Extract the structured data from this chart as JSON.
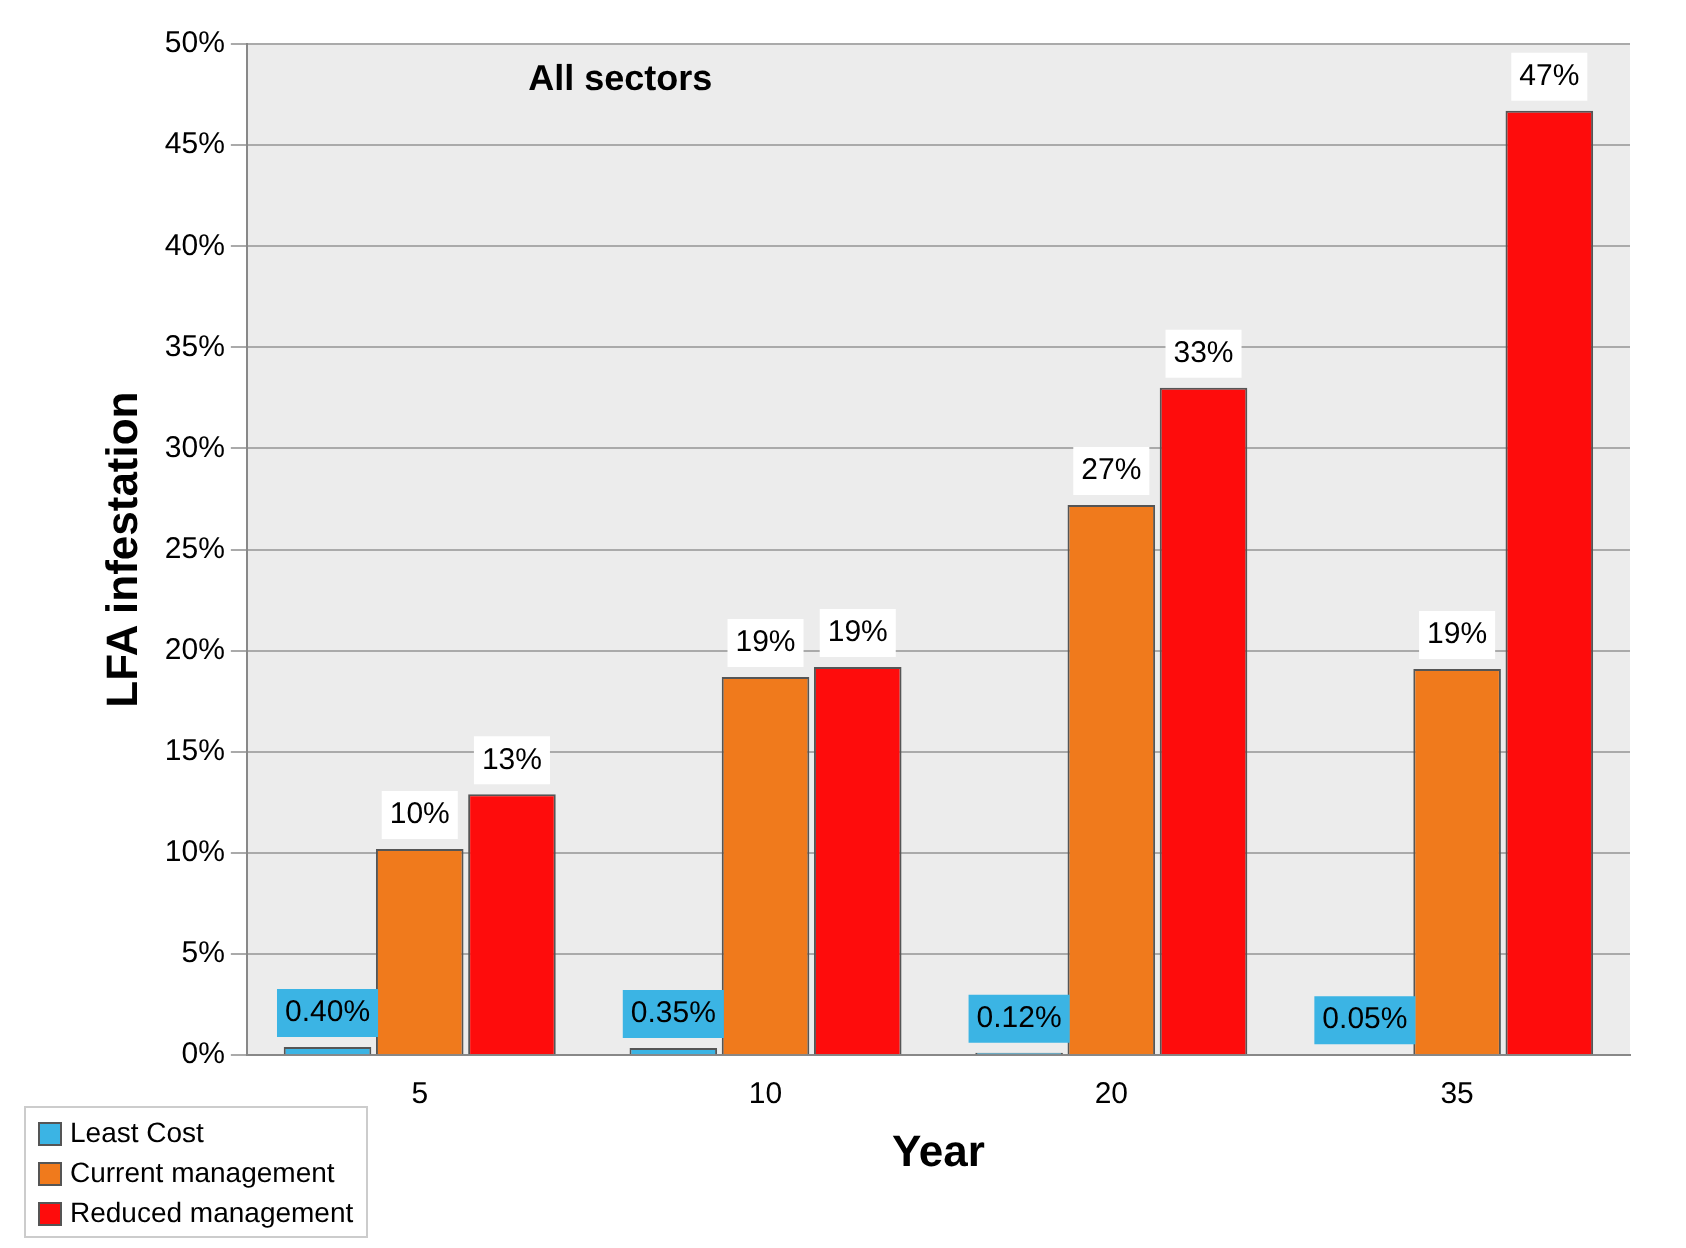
{
  "chart_data": {
    "type": "bar",
    "title": "All sectors",
    "xlabel": "Year",
    "ylabel": "LFA infestation",
    "categories": [
      "5",
      "10",
      "20",
      "35"
    ],
    "series": [
      {
        "name": "Least Cost",
        "color": "#3bb4e4",
        "values": [
          0.4,
          0.35,
          0.12,
          0.05
        ],
        "value_labels": [
          "0.40%",
          "0.35%",
          "0.12%",
          "0.05%"
        ]
      },
      {
        "name": "Current management",
        "color": "#f07a1c",
        "values": [
          10.2,
          18.7,
          27.2,
          19.1
        ],
        "value_labels": [
          "10%",
          "19%",
          "27%",
          "19%"
        ]
      },
      {
        "name": "Reduced management",
        "color": "#fe0c0c",
        "values": [
          12.9,
          19.2,
          33.0,
          46.7
        ],
        "value_labels": [
          "13%",
          "19%",
          "33%",
          "47%"
        ]
      }
    ],
    "ylim": [
      0,
      50
    ],
    "yticks": [
      {
        "value": 0,
        "label": "0%"
      },
      {
        "value": 5,
        "label": "5%"
      },
      {
        "value": 10,
        "label": "10%"
      },
      {
        "value": 15,
        "label": "15%"
      },
      {
        "value": 20,
        "label": "20%"
      },
      {
        "value": 25,
        "label": "25%"
      },
      {
        "value": 30,
        "label": "30%"
      },
      {
        "value": 35,
        "label": "35%"
      },
      {
        "value": 40,
        "label": "40%"
      },
      {
        "value": 45,
        "label": "45%"
      },
      {
        "value": 50,
        "label": "50%"
      }
    ],
    "grid": "y",
    "legend": "bottom left"
  }
}
